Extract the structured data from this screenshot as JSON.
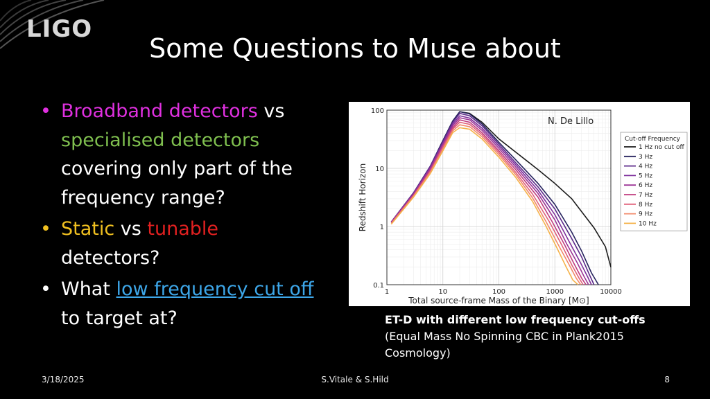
{
  "logo": {
    "text": "LIGO"
  },
  "slide": {
    "title": "Some Questions to Muse about"
  },
  "bullets": [
    {
      "seg1": "Broadband detectors",
      "seg2": " vs ",
      "seg3": "specialised detectors",
      "seg4": " covering only part of the frequency range?"
    },
    {
      "seg1": "Static",
      "seg2": " vs ",
      "seg3": "tunable",
      "seg4": " detectors?"
    },
    {
      "seg1": "What ",
      "seg2": "low frequency cut off",
      "seg3": " to target at?"
    }
  ],
  "bullet_glyph": "•",
  "colors": {
    "magenta": "#e030e0",
    "green": "#7fbf4f",
    "yellow": "#f0c020",
    "red": "#e02020",
    "link": "#3da6e8"
  },
  "caption": {
    "bold": "ET-D with different low frequency cut-offs",
    "rest": " (Equal Mass No Spinning CBC in Plank2015 Cosmology)"
  },
  "footer": {
    "date": "3/18/2025",
    "authors": "S.Vitale & S.Hild",
    "page": "8"
  },
  "chart_data": {
    "type": "line",
    "annotation": "N. De Lillo",
    "xlabel": "Total source-frame Mass of the Binary [M⊙]",
    "ylabel": "Redshift Horizon",
    "x_scale": "log",
    "y_scale": "log",
    "xlim": [
      1,
      10000
    ],
    "ylim": [
      0.1,
      100
    ],
    "x_ticks": [
      "1",
      "10",
      "100",
      "1000",
      "10000"
    ],
    "y_ticks": [
      "0.1",
      "1",
      "10",
      "100"
    ],
    "grid": true,
    "legend": {
      "title": "Cut-off Frequency",
      "placement": "right"
    },
    "series": [
      {
        "name": "1 Hz no cut off",
        "color": "#1a1a1a",
        "x": [
          1.2,
          3,
          6,
          10,
          15,
          20,
          30,
          50,
          100,
          200,
          500,
          1000,
          2000,
          5000,
          8000,
          12000
        ],
        "y": [
          1.2,
          3.8,
          11,
          30,
          65,
          94,
          88,
          62,
          32,
          19,
          9.5,
          5.5,
          3.0,
          0.95,
          0.45,
          0.2
        ]
      },
      {
        "name": "3 Hz",
        "color": "#26235e",
        "x": [
          1.2,
          3,
          6,
          10,
          15,
          20,
          30,
          50,
          100,
          200,
          500,
          1000,
          2000,
          3000,
          4500,
          6000
        ],
        "y": [
          1.2,
          3.8,
          11,
          30,
          65,
          94,
          86,
          58,
          28,
          14,
          5.5,
          2.4,
          0.8,
          0.38,
          0.16,
          0.1
        ]
      },
      {
        "name": "4 Hz",
        "color": "#5b2a8a",
        "x": [
          1.2,
          3,
          6,
          10,
          15,
          20,
          30,
          50,
          100,
          200,
          500,
          1000,
          2000,
          3000,
          4000,
          5000
        ],
        "y": [
          1.2,
          3.8,
          11,
          29,
          62,
          88,
          80,
          54,
          26,
          12.5,
          4.8,
          2.0,
          0.62,
          0.3,
          0.16,
          0.1
        ]
      },
      {
        "name": "5 Hz",
        "color": "#7e2f9c",
        "x": [
          1.2,
          3,
          6,
          10,
          15,
          20,
          30,
          50,
          100,
          200,
          500,
          1000,
          1800,
          2800,
          3800,
          4500
        ],
        "y": [
          1.2,
          3.7,
          10.5,
          27,
          58,
          80,
          73,
          49,
          24,
          11.5,
          4.2,
          1.6,
          0.55,
          0.25,
          0.14,
          0.1
        ]
      },
      {
        "name": "6 Hz",
        "color": "#9c3596",
        "x": [
          1.2,
          3,
          6,
          10,
          15,
          20,
          30,
          50,
          100,
          200,
          500,
          1000,
          1600,
          2500,
          3300,
          4000
        ],
        "y": [
          1.2,
          3.6,
          10,
          26,
          54,
          74,
          68,
          45,
          22,
          10.5,
          3.7,
          1.3,
          0.52,
          0.24,
          0.14,
          0.1
        ]
      },
      {
        "name": "7 Hz",
        "color": "#c03c7f",
        "x": [
          1.2,
          3,
          6,
          10,
          15,
          20,
          30,
          50,
          100,
          200,
          500,
          900,
          1500,
          2200,
          3000,
          3600
        ],
        "y": [
          1.15,
          3.5,
          9.5,
          24,
          50,
          68,
          62,
          41,
          20,
          9.5,
          3.2,
          1.2,
          0.48,
          0.23,
          0.13,
          0.1
        ]
      },
      {
        "name": "8 Hz",
        "color": "#e0607a",
        "x": [
          1.2,
          3,
          6,
          10,
          15,
          20,
          30,
          50,
          100,
          200,
          400,
          800,
          1300,
          2000,
          2700,
          3200
        ],
        "y": [
          1.15,
          3.4,
          9,
          23,
          47,
          62,
          57,
          38,
          18.5,
          8.5,
          3.6,
          1.2,
          0.5,
          0.22,
          0.13,
          0.1
        ]
      },
      {
        "name": "9 Hz",
        "color": "#f2896a",
        "x": [
          1.2,
          3,
          6,
          10,
          15,
          20,
          30,
          50,
          100,
          200,
          400,
          700,
          1200,
          1800,
          2400,
          2900
        ],
        "y": [
          1.1,
          3.3,
          8.6,
          21,
          44,
          56,
          52,
          35,
          17,
          7.8,
          3.1,
          1.2,
          0.45,
          0.22,
          0.13,
          0.1
        ]
      },
      {
        "name": "10 Hz",
        "color": "#f5b24a",
        "x": [
          1.2,
          3,
          6,
          10,
          15,
          20,
          30,
          50,
          100,
          200,
          400,
          700,
          1100,
          1600,
          2100,
          2600
        ],
        "y": [
          1.1,
          3.2,
          8.2,
          20,
          41,
          50,
          47,
          32,
          15.5,
          7.0,
          2.7,
          1.0,
          0.42,
          0.2,
          0.12,
          0.1
        ]
      }
    ]
  }
}
